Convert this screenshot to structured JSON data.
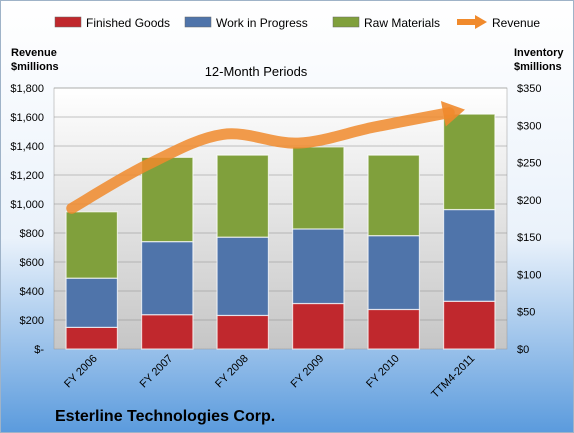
{
  "chart_data": {
    "type": "bar",
    "subtitle": "12-Month Periods",
    "company": "Esterline Technologies Corp.",
    "left_axis_title": [
      "Revenue",
      "$millions"
    ],
    "right_axis_title": [
      "Inventory",
      "$millions"
    ],
    "categories": [
      "FY 2006",
      "FY 2007",
      "FY 2008",
      "FY 2009",
      "FY 2010",
      "TTM4-2011"
    ],
    "left_ylim": [
      0,
      1800
    ],
    "right_ylim": [
      0,
      350
    ],
    "left_ticks": [
      "$-",
      "$200",
      "$400",
      "$600",
      "$800",
      "$1,000",
      "$1,200",
      "$1,400",
      "$1,600",
      "$1,800"
    ],
    "right_ticks": [
      "$0",
      "$50",
      "$100",
      "$150",
      "$200",
      "$250",
      "$300",
      "$350"
    ],
    "stack_series": [
      {
        "name": "Finished Goods",
        "color": "#c0282d",
        "values": [
          29,
          46,
          45,
          61,
          53,
          64
        ]
      },
      {
        "name": "Work in Progress",
        "color": "#4f74aa",
        "values": [
          66,
          98,
          105,
          100,
          99,
          123
        ]
      },
      {
        "name": "Raw Materials",
        "color": "#80a03c",
        "values": [
          89,
          113,
          110,
          110,
          108,
          128
        ]
      }
    ],
    "line_series": {
      "name": "Revenue",
      "color": "#f08a2c",
      "values": [
        970,
        1270,
        1480,
        1420,
        1530,
        1630
      ]
    },
    "grid": true,
    "legend_position": "top"
  }
}
